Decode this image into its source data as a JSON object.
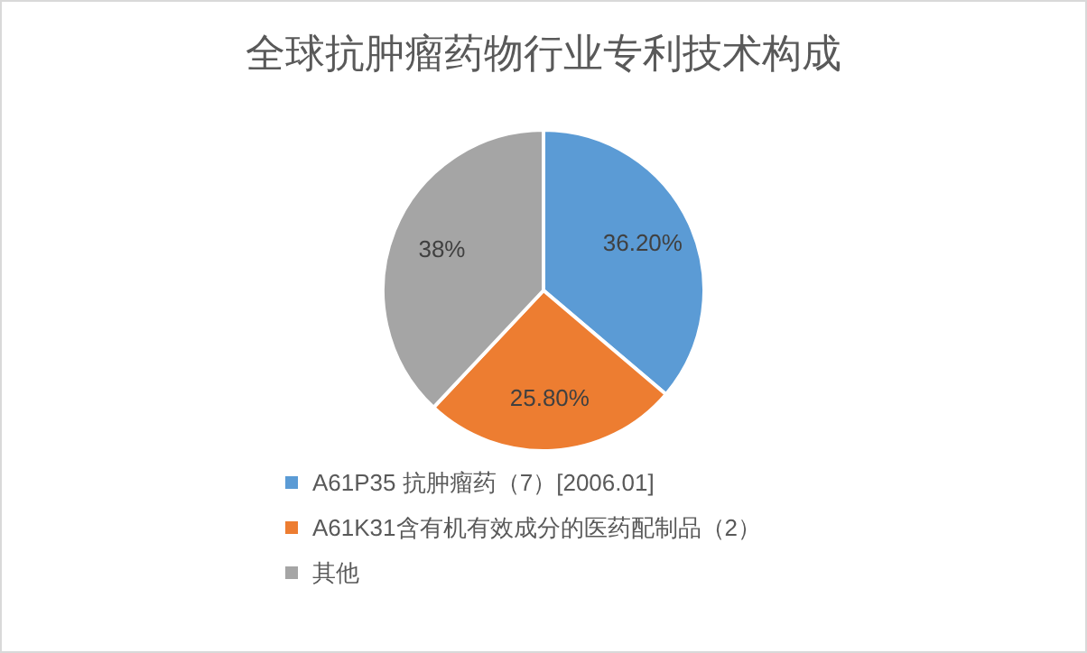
{
  "chart_data": {
    "type": "pie",
    "title": "全球抗肿瘤药物行业专利技术构成",
    "categories": [
      "A61P35 抗肿瘤药（7）[2006.01]",
      "A61K31含有机有效成分的医药配制品（2）",
      "其他"
    ],
    "values": [
      36.2,
      25.8,
      38
    ],
    "value_labels": [
      "36.20%",
      "25.80%",
      "38%"
    ],
    "colors": [
      "#5b9bd5",
      "#ed7d31",
      "#a5a5a5"
    ],
    "legend": "bottom"
  }
}
